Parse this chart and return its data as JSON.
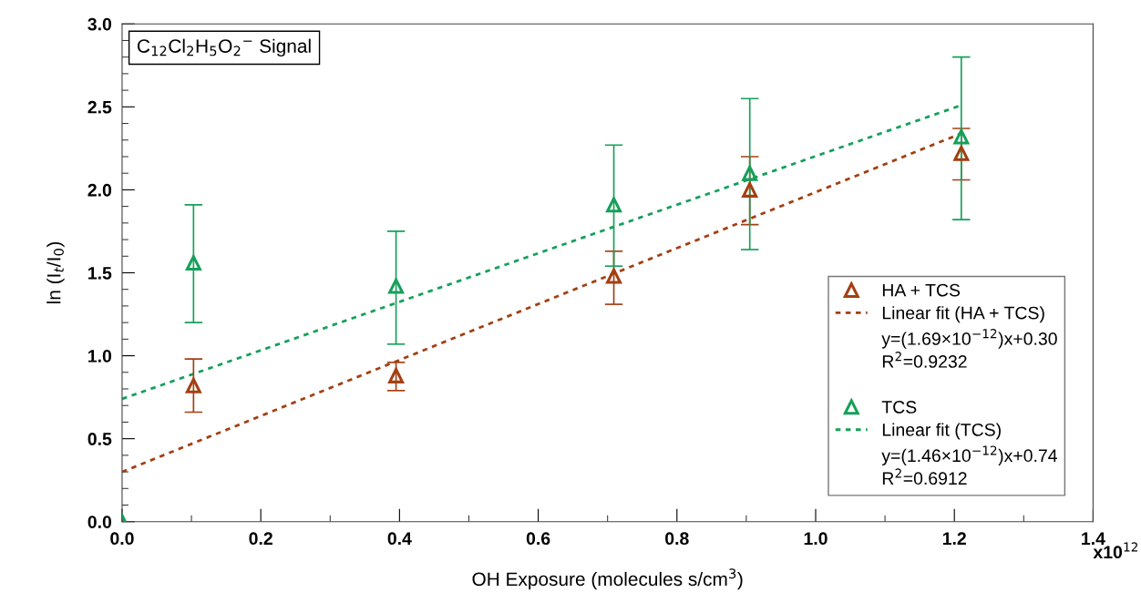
{
  "chart_data": {
    "type": "scatter",
    "annotations": [
      "C$_{12}$Cl$_{2}$H$_{5}$O$_{2}$$^{−}$ Signal",
      "y=(1.69×10$^{−12}$)x+0.30",
      "R$^{2}$=0.9232",
      "y=(1.46×10$^{−12}$)x+0.74",
      "R$^{2}$=0.6912",
      "x10$^{12}$"
    ],
    "xlabel": "OH Exposure (molecules s/cm$^{3}$)",
    "ylabel": "ln (I$_{t}$/I$_{0}$)",
    "series": [
      {
        "name": "HA + TCS",
        "marker": "triangle",
        "color": "#a33f12",
        "x": [
          0.103,
          0.395,
          0.709,
          0.905,
          1.21
        ],
        "values": [
          0.82,
          0.88,
          1.48,
          2.0,
          2.22
        ],
        "errors": [
          [
            0.66,
            0.98
          ],
          [
            0.79,
            0.96
          ],
          [
            1.31,
            1.63
          ],
          [
            1.79,
            2.2
          ],
          [
            2.06,
            2.37
          ]
        ]
      },
      {
        "name": "Linear fit (HA + TCS)",
        "type": "line",
        "line_style": "dotted",
        "color": "#a33f12",
        "x": [
          0,
          1.21
        ],
        "values": [
          0.3,
          2.34
        ]
      },
      {
        "name": "TCS",
        "marker": "triangle",
        "color": "#16a05a",
        "x": [
          0,
          0.103,
          0.395,
          0.709,
          0.905,
          1.21
        ],
        "values": [
          0.0,
          1.56,
          1.42,
          1.91,
          2.1,
          2.32
        ],
        "errors": [
          null,
          [
            1.2,
            1.91
          ],
          [
            1.07,
            1.75
          ],
          [
            1.54,
            2.27
          ],
          [
            1.64,
            2.55
          ],
          [
            1.82,
            2.8
          ]
        ]
      },
      {
        "name": "Linear fit (TCS)",
        "type": "line",
        "line_style": "dotted",
        "color": "#16a05a",
        "x": [
          0,
          1.21
        ],
        "values": [
          0.74,
          2.51
        ]
      }
    ],
    "xlim": [
      0,
      1.4
    ],
    "xticks": [
      {
        "value": 0,
        "label": "0.0"
      },
      0.2,
      0.4,
      0.6,
      0.8,
      {
        "value": 1,
        "label": "1.0"
      },
      1.2,
      1.4
    ],
    "ylim": [
      0,
      3
    ],
    "yticks": [
      {
        "value": 0,
        "label": "0.0"
      },
      0.5,
      {
        "value": 1,
        "label": "1.0"
      },
      1.5,
      {
        "value": 2,
        "label": "2.0"
      },
      2.5,
      {
        "value": 3,
        "label": "3.0"
      }
    ],
    "grid": false,
    "legend": "bottom right"
  }
}
